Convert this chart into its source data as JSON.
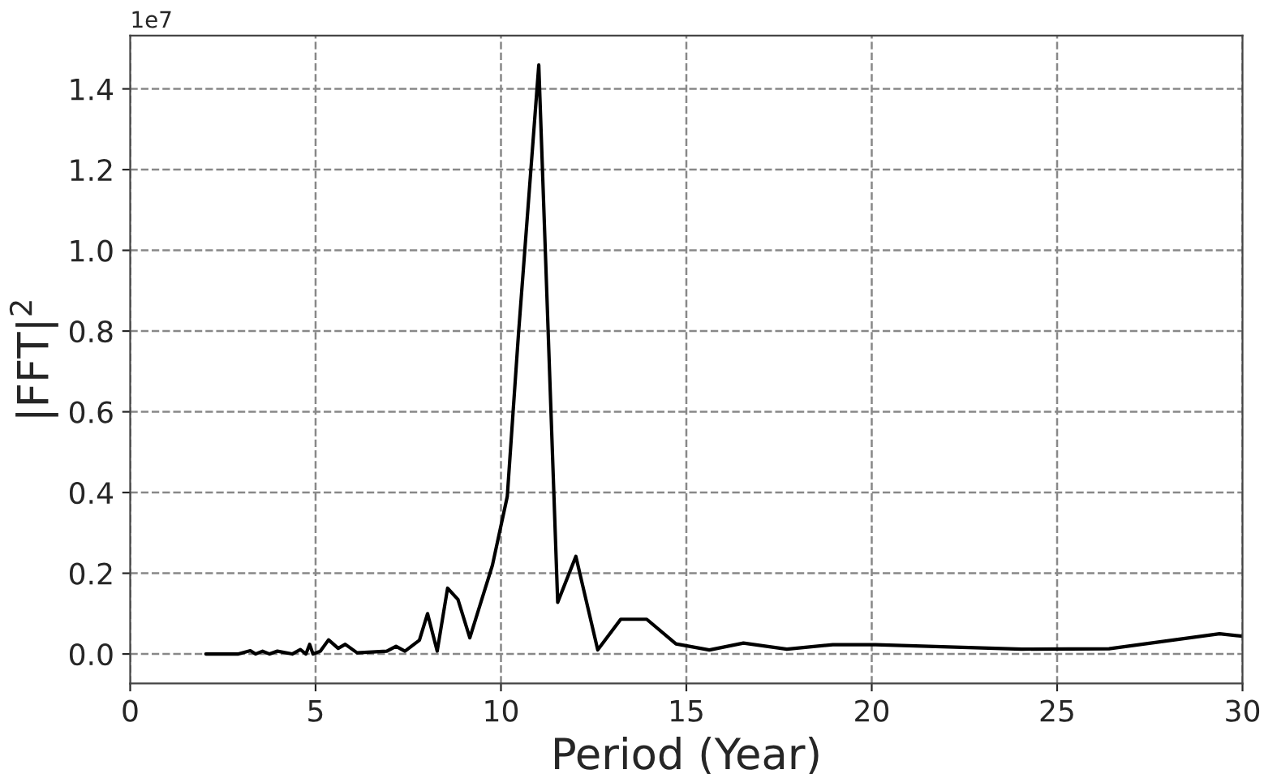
{
  "chart_data": {
    "type": "line",
    "xlabel": "Period (Year)",
    "ylabel": "|FFT|$^{2}$",
    "annotations": [
      "1e7"
    ],
    "x": [
      2.04,
      2.92,
      3.24,
      3.38,
      3.57,
      3.76,
      3.97,
      4.37,
      4.59,
      4.74,
      4.84,
      4.93,
      5.13,
      5.35,
      5.61,
      5.8,
      6.12,
      6.92,
      7.17,
      7.41,
      7.8,
      8.02,
      8.28,
      8.56,
      8.84,
      9.16,
      9.77,
      10.17,
      10.47,
      11.02,
      11.53,
      12.02,
      12.61,
      13.23,
      13.93,
      14.72,
      15.62,
      16.54,
      17.71,
      18.95,
      20.1,
      24.05,
      26.4,
      29.38,
      30.0
    ],
    "series": [
      {
        "color": "#000000",
        "values": [
          0.0,
          0.0,
          0.008,
          0.0,
          0.007,
          0.0,
          0.007,
          0.0,
          0.011,
          0.0,
          0.024,
          0.0,
          0.007,
          0.035,
          0.014,
          0.024,
          0.003,
          0.007,
          0.019,
          0.007,
          0.034,
          0.1,
          0.007,
          0.163,
          0.135,
          0.04,
          0.22,
          0.39,
          0.79,
          1.459,
          0.128,
          0.242,
          0.01,
          0.086,
          0.086,
          0.025,
          0.01,
          0.027,
          0.012,
          0.023,
          0.023,
          0.012,
          0.013,
          0.05,
          0.044
        ]
      }
    ],
    "xlim": [
      0,
      30
    ],
    "xticks": [
      0,
      5,
      10,
      15,
      20,
      25,
      30
    ],
    "ylim": [
      -0.073,
      1.532
    ],
    "yticks": [
      {
        "value": 0,
        "label": "0.0"
      },
      {
        "value": 0.2,
        "label": "0.2"
      },
      {
        "value": 0.4,
        "label": "0.4"
      },
      {
        "value": 0.6,
        "label": "0.6"
      },
      {
        "value": 0.8,
        "label": "0.8"
      },
      {
        "value": 1.0,
        "label": "1.0"
      },
      {
        "value": 1.2,
        "label": "1.2"
      },
      {
        "value": 1.4,
        "label": "1.4"
      }
    ],
    "grid": true,
    "line_style": "solid"
  }
}
